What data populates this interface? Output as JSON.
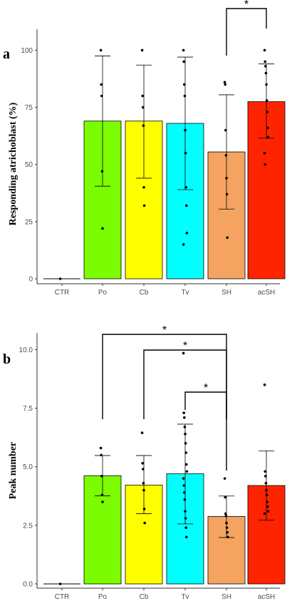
{
  "chart_data": [
    {
      "type": "bar",
      "panel_label": "a",
      "ylabel": "Responding atrichoblast (%)",
      "categories": [
        "CTR",
        "Po",
        "Cb",
        "Tv",
        "SH",
        "acSH"
      ],
      "values": [
        0,
        69,
        69,
        68,
        55.5,
        77.5
      ],
      "error_upper": [
        0,
        97.5,
        93.5,
        97,
        80.5,
        94
      ],
      "error_lower": [
        0,
        40.5,
        44,
        39,
        30.5,
        61.5
      ],
      "points": [
        [
          0
        ],
        [
          100,
          85,
          80,
          47,
          22
        ],
        [
          100,
          80,
          75,
          67,
          40,
          32
        ],
        [
          100,
          95,
          85,
          80,
          65,
          55,
          40,
          32,
          20,
          15
        ],
        [
          86,
          85,
          65,
          54,
          44,
          37,
          18
        ],
        [
          100,
          95,
          93,
          90,
          85,
          78,
          73,
          66,
          62,
          55,
          50
        ]
      ],
      "colors": [
        "#ffffff",
        "#7cfc00",
        "#ffff00",
        "#00ffff",
        "#f4a460",
        "#ff2400"
      ],
      "ylim": [
        0,
        107
      ],
      "yticks": [
        "0",
        "25",
        "50",
        "75",
        "100"
      ],
      "significance": [
        {
          "from": "SH",
          "to": "acSH",
          "label": "*"
        }
      ],
      "grid": false
    },
    {
      "type": "bar",
      "panel_label": "b",
      "ylabel": "Peak number",
      "categories": [
        "CTR",
        "Po",
        "Cb",
        "Tv",
        "SH",
        "acSH"
      ],
      "values": [
        0,
        4.62,
        4.22,
        4.7,
        2.88,
        4.2
      ],
      "error_upper": [
        0,
        5.48,
        5.48,
        6.82,
        3.75,
        5.68
      ],
      "error_lower": [
        0,
        3.76,
        3.0,
        2.56,
        1.98,
        2.72
      ],
      "points": [
        [
          0
        ],
        [
          5.8,
          5.5,
          4.6,
          3.8,
          3.5
        ],
        [
          6.45,
          5.15,
          4.9,
          4.3,
          4.0,
          3.2,
          2.6
        ],
        [
          9.85,
          7.3,
          7.1,
          6.7,
          6.4,
          6.0,
          5.6,
          5.1,
          4.8,
          4.5,
          4.2,
          3.9,
          3.6,
          3.1,
          2.8,
          2.4,
          2.0
        ],
        [
          4.5,
          3.7,
          3.0,
          2.9,
          2.6,
          2.4,
          2.2,
          2.0
        ],
        [
          8.5,
          4.8,
          4.6,
          4.3,
          4.0,
          3.8,
          3.5,
          3.3,
          3.1,
          3.0
        ]
      ],
      "colors": [
        "#ffffff",
        "#7cfc00",
        "#ffff00",
        "#00ffff",
        "#f4a460",
        "#ff2400"
      ],
      "ylim": [
        0,
        10.5
      ],
      "yticks": [
        "0.0",
        "2.5",
        "5.0",
        "7.5",
        "10.0"
      ],
      "significance": [
        {
          "from": "Po",
          "to": "SH",
          "label": "*"
        },
        {
          "from": "Cb",
          "to": "SH",
          "label": "*"
        },
        {
          "from": "Tv",
          "to": "SH",
          "label": "*"
        }
      ],
      "grid": false
    }
  ]
}
